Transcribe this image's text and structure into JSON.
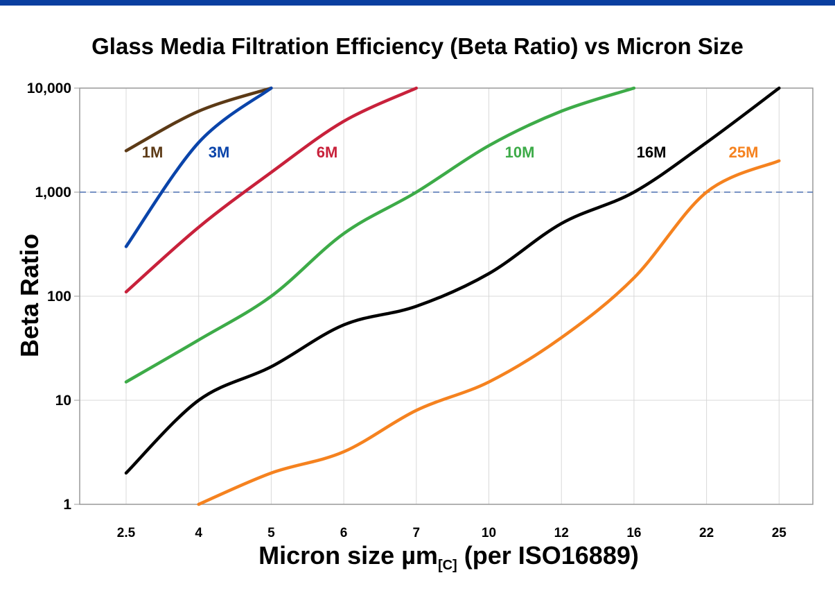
{
  "chart_data": {
    "type": "line",
    "title": "Glass Media Filtration Efficiency (Beta Ratio) vs Micron Size",
    "xlabel_main": "Micron size µm",
    "xlabel_sub": "[C]",
    "xlabel_tail": " (per ISO16889)",
    "ylabel": "Beta Ratio",
    "y_scale": "log",
    "ylim": [
      1,
      10000
    ],
    "y_ticks": [
      "1",
      "10",
      "100",
      "1,000",
      "10,000"
    ],
    "categories": [
      "2.5",
      "4",
      "5",
      "6",
      "7",
      "10",
      "12",
      "16",
      "22",
      "25"
    ],
    "grid": true,
    "reference_line": {
      "y": 1000,
      "style": "dashed",
      "color": "#4a6fb0"
    },
    "series": [
      {
        "name": "1M",
        "color": "#5c3a16",
        "values": [
          2500,
          6000,
          10000,
          null,
          null,
          null,
          null,
          null,
          null,
          null
        ]
      },
      {
        "name": "3M",
        "color": "#0a44aa",
        "values": [
          300,
          3000,
          10000,
          null,
          null,
          null,
          null,
          null,
          null,
          null
        ]
      },
      {
        "name": "6M",
        "color": "#c8213b",
        "values": [
          110,
          460,
          1550,
          4800,
          10000,
          null,
          null,
          null,
          null,
          null
        ]
      },
      {
        "name": "10M",
        "color": "#3dab48",
        "values": [
          15,
          38,
          100,
          400,
          1000,
          2800,
          6000,
          10000,
          null,
          null
        ]
      },
      {
        "name": "16M",
        "color": "#000000",
        "values": [
          2,
          10,
          21,
          53,
          80,
          165,
          500,
          1000,
          3000,
          10000
        ]
      },
      {
        "name": "25M",
        "color": "#f5821f",
        "values": [
          null,
          1,
          2,
          3.2,
          8,
          15,
          40,
          150,
          1000,
          2000
        ]
      }
    ]
  }
}
